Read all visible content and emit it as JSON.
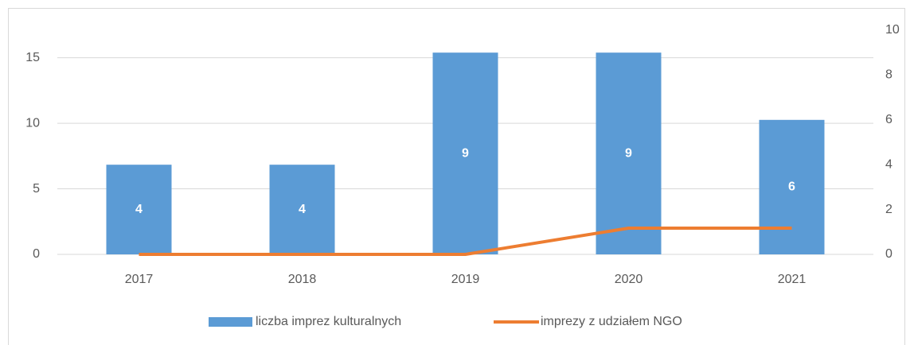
{
  "chart_data": {
    "type": "bar",
    "categories": [
      "2017",
      "2018",
      "2019",
      "2020",
      "2021"
    ],
    "series": [
      {
        "name": "liczba imprez kulturalnych",
        "color": "#5b9bd5",
        "axis": "y2",
        "type": "bar",
        "values": [
          4,
          4,
          9,
          9,
          6
        ]
      },
      {
        "name": "imprezy z udziałem NGO",
        "color": "#ed7d31",
        "axis": "y",
        "type": "line",
        "values": [
          0,
          0,
          0,
          2,
          2
        ]
      }
    ],
    "ylim": [
      0,
      17.1
    ],
    "yticks": [
      0,
      5,
      10,
      15
    ],
    "y2lim": [
      0,
      10
    ],
    "y2ticks": [
      0,
      2,
      4,
      6,
      8,
      10
    ],
    "grid": true,
    "legend": "bottom"
  }
}
